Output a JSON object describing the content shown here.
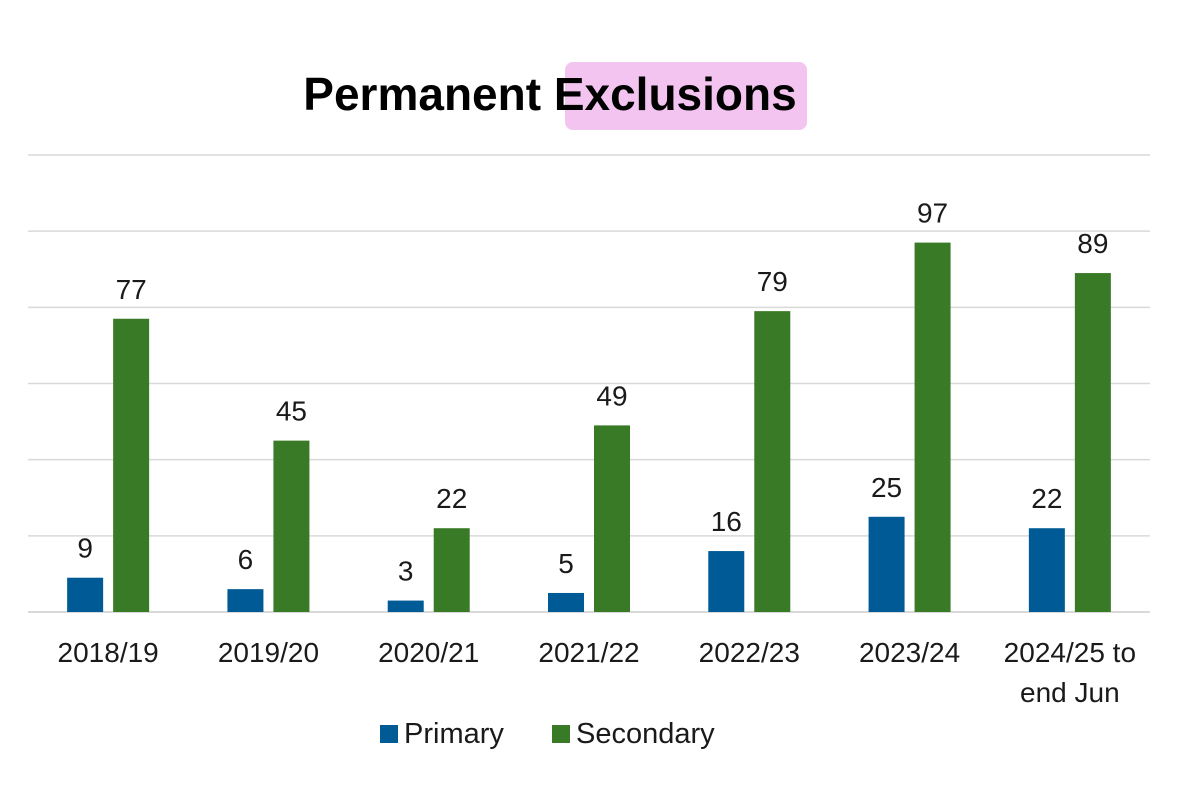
{
  "chart_data": {
    "type": "bar",
    "title": "Permanent Exclusions",
    "title_highlight": "Exclusions",
    "highlight_color": "#f2c4ef",
    "categories": [
      [
        "2018/19"
      ],
      [
        "2019/20"
      ],
      [
        "2020/21"
      ],
      [
        "2021/22"
      ],
      [
        "2022/23"
      ],
      [
        "2023/24"
      ],
      [
        "2024/25 to",
        "end Jun"
      ]
    ],
    "series": [
      {
        "name": "Primary",
        "color": "#005a96",
        "values": [
          9,
          6,
          3,
          5,
          16,
          25,
          22
        ]
      },
      {
        "name": "Secondary",
        "color": "#387a25",
        "values": [
          77,
          45,
          22,
          49,
          79,
          97,
          89
        ]
      }
    ],
    "ylim": [
      0,
      120
    ],
    "y_gridline_step": 20,
    "grid": true,
    "data_labels": true,
    "legend_position": "bottom"
  }
}
